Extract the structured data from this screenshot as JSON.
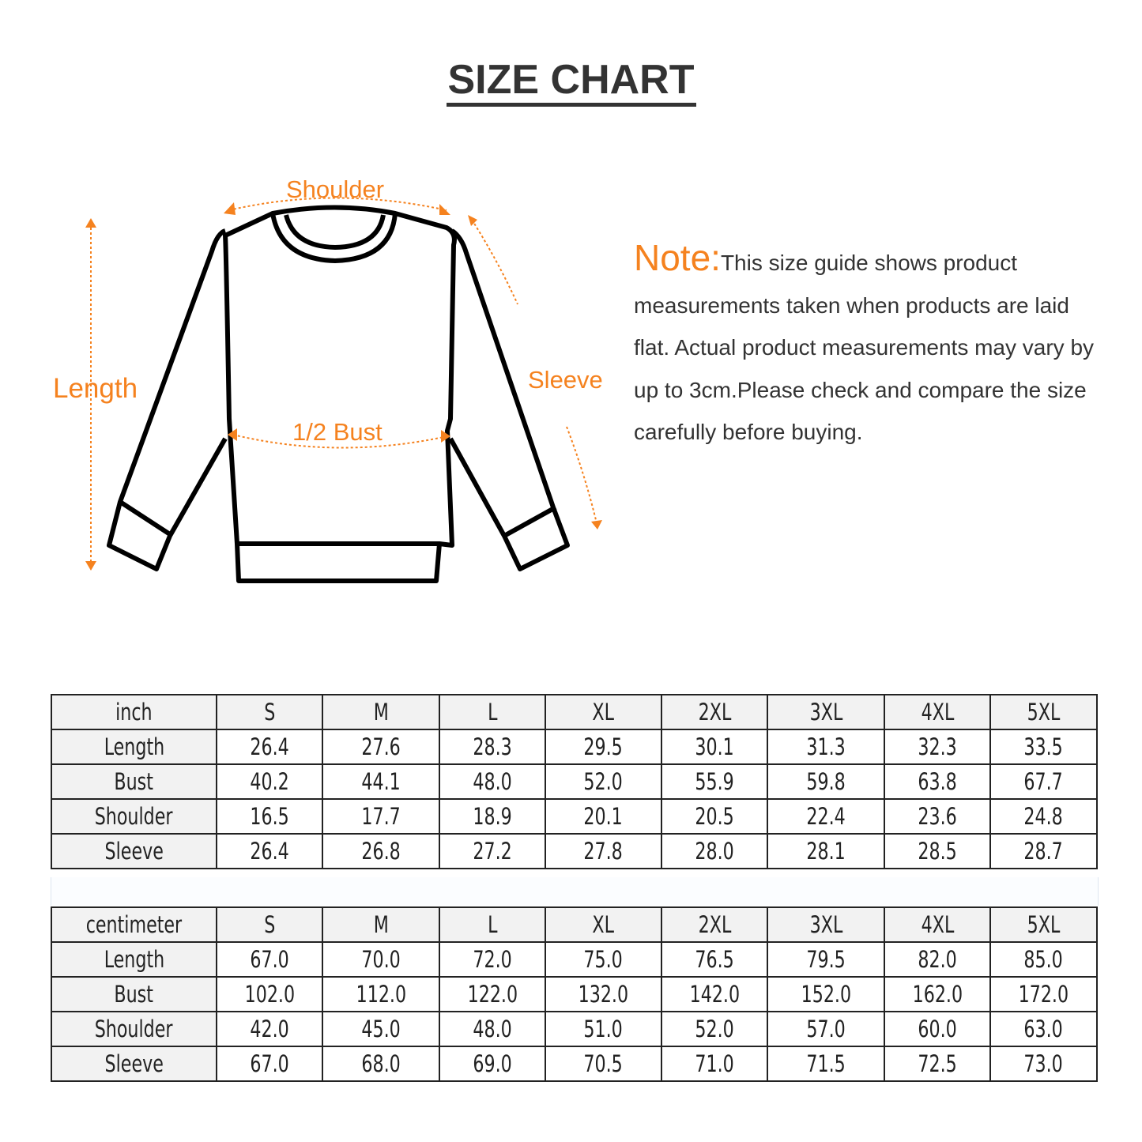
{
  "title": "SIZE CHART",
  "diagram_labels": {
    "shoulder": "Shoulder",
    "length": "Length",
    "sleeve": "Sleeve",
    "bust": "1/2 Bust"
  },
  "note": {
    "heading": "Note:",
    "text": "This size guide shows product measurements taken when products are laid flat. Actual product measurements may vary by up to 3cm.Please check and compare the size carefully before buying."
  },
  "colors": {
    "accent": "#f5821f",
    "text": "#333333",
    "header_bg": "#f2f2f2"
  },
  "tables": [
    {
      "unit": "inch",
      "sizes": [
        "S",
        "M",
        "L",
        "XL",
        "2XL",
        "3XL",
        "4XL",
        "5XL"
      ],
      "rows": [
        {
          "label": "Length",
          "values": [
            "26.4",
            "27.6",
            "28.3",
            "29.5",
            "30.1",
            "31.3",
            "32.3",
            "33.5"
          ]
        },
        {
          "label": "Bust",
          "values": [
            "40.2",
            "44.1",
            "48.0",
            "52.0",
            "55.9",
            "59.8",
            "63.8",
            "67.7"
          ]
        },
        {
          "label": "Shoulder",
          "values": [
            "16.5",
            "17.7",
            "18.9",
            "20.1",
            "20.5",
            "22.4",
            "23.6",
            "24.8"
          ]
        },
        {
          "label": "Sleeve",
          "values": [
            "26.4",
            "26.8",
            "27.2",
            "27.8",
            "28.0",
            "28.1",
            "28.5",
            "28.7"
          ]
        }
      ]
    },
    {
      "unit": "centimeter",
      "sizes": [
        "S",
        "M",
        "L",
        "XL",
        "2XL",
        "3XL",
        "4XL",
        "5XL"
      ],
      "rows": [
        {
          "label": "Length",
          "values": [
            "67.0",
            "70.0",
            "72.0",
            "75.0",
            "76.5",
            "79.5",
            "82.0",
            "85.0"
          ]
        },
        {
          "label": "Bust",
          "values": [
            "102.0",
            "112.0",
            "122.0",
            "132.0",
            "142.0",
            "152.0",
            "162.0",
            "172.0"
          ]
        },
        {
          "label": "Shoulder",
          "values": [
            "42.0",
            "45.0",
            "48.0",
            "51.0",
            "52.0",
            "57.0",
            "60.0",
            "63.0"
          ]
        },
        {
          "label": "Sleeve",
          "values": [
            "67.0",
            "68.0",
            "69.0",
            "70.5",
            "71.0",
            "71.5",
            "72.5",
            "73.0"
          ]
        }
      ]
    }
  ]
}
